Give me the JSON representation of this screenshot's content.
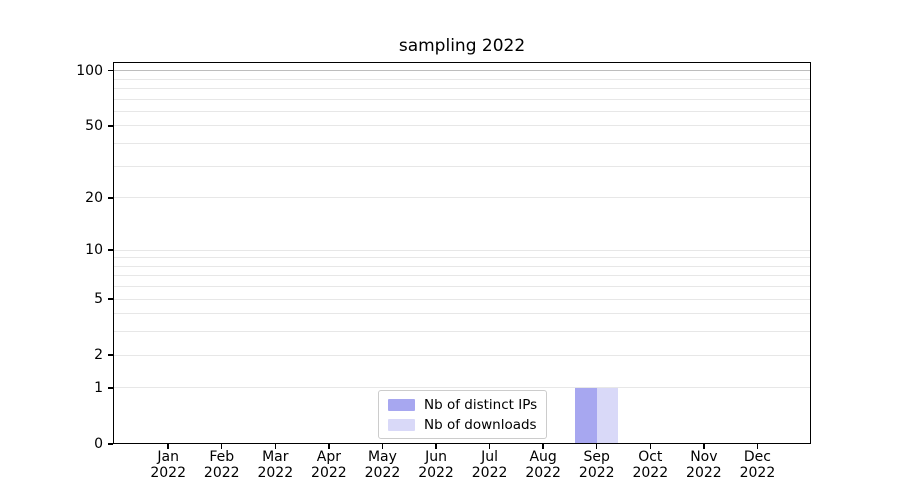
{
  "chart_data": {
    "type": "bar",
    "title": "sampling 2022",
    "categories": [
      "Jan 2022",
      "Feb 2022",
      "Mar 2022",
      "Apr 2022",
      "May 2022",
      "Jun 2022",
      "Jul 2022",
      "Aug 2022",
      "Sep 2022",
      "Oct 2022",
      "Nov 2022",
      "Dec 2022"
    ],
    "series": [
      {
        "name": "Nb of distinct IPs",
        "color": "#a7a7f0",
        "values": [
          0,
          0,
          0,
          0,
          0,
          0,
          0,
          0,
          1,
          0,
          0,
          0
        ]
      },
      {
        "name": "Nb of downloads",
        "color": "#d9d9f8",
        "values": [
          0,
          0,
          0,
          0,
          0,
          0,
          0,
          0,
          1,
          0,
          0,
          0
        ]
      }
    ],
    "xlabel": "",
    "ylabel": "",
    "yscale": "log1p",
    "ylim": [
      0,
      111.5
    ],
    "yticks": [
      0,
      1,
      2,
      5,
      10,
      20,
      50,
      100
    ],
    "bar_width_fraction": 0.4,
    "grid": {
      "horizontal": true,
      "minor": true,
      "emphasized_value": 100
    },
    "legend": {
      "position": "lower center"
    }
  }
}
